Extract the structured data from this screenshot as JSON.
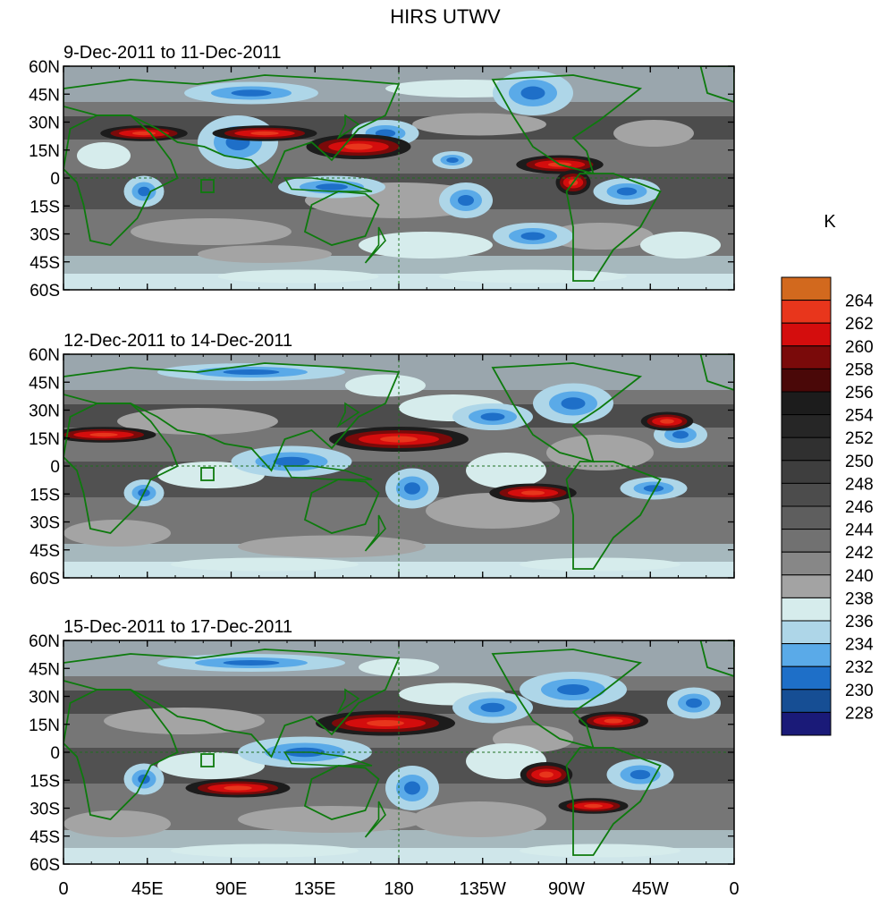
{
  "figure": {
    "title": "HIRS UTWV",
    "units": "K"
  },
  "panels": [
    {
      "date_range": "9-Dec-2011 to 11-Dec-2011"
    },
    {
      "date_range": "12-Dec-2011 to 14-Dec-2011"
    },
    {
      "date_range": "15-Dec-2011 to 17-Dec-2011"
    }
  ],
  "axes": {
    "lat_labels": [
      "60N",
      "45N",
      "30N",
      "15N",
      "0",
      "15S",
      "30S",
      "45S",
      "60S"
    ],
    "lon_labels": [
      "0",
      "45E",
      "90E",
      "135E",
      "180",
      "135W",
      "90W",
      "45W",
      "0"
    ]
  },
  "colorbar": {
    "levels": [
      "264",
      "262",
      "260",
      "258",
      "256",
      "254",
      "252",
      "250",
      "248",
      "246",
      "244",
      "242",
      "240",
      "238",
      "236",
      "234",
      "232",
      "230",
      "228"
    ],
    "colors": [
      "#d2691e",
      "#e8361c",
      "#d40d0d",
      "#7a0a0a",
      "#4a0808",
      "#1c1c1c",
      "#262626",
      "#303030",
      "#3e3e3e",
      "#4c4c4c",
      "#5e5e5e",
      "#717171",
      "#878787",
      "#a3a3a3",
      "#d6ecec",
      "#aed6e8",
      "#5aaae8",
      "#1e6fc8",
      "#164e94",
      "#1a1a78"
    ]
  }
}
